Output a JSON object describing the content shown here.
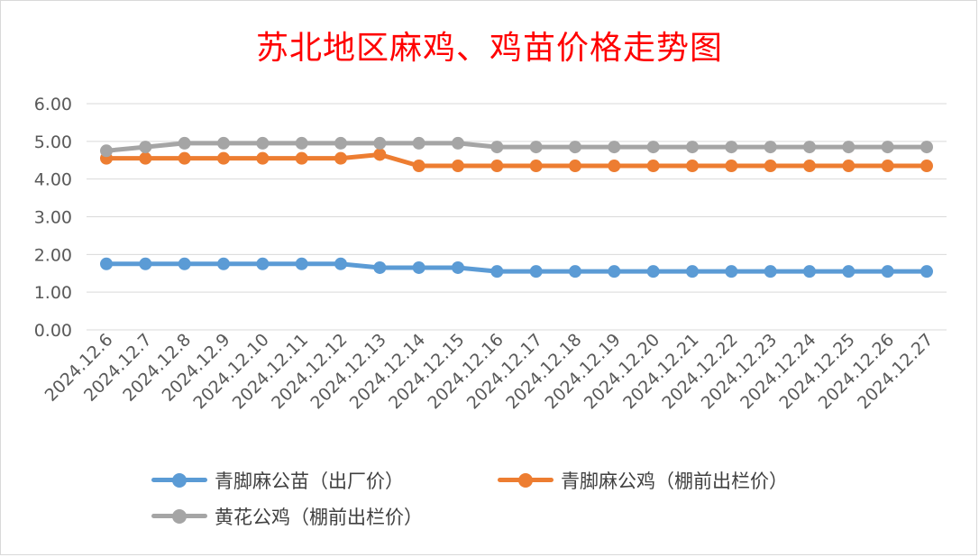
{
  "chart_data": {
    "type": "line",
    "title": "苏北地区麻鸡、鸡苗价格走势图",
    "xlabel": "",
    "ylabel": "",
    "ylim": [
      0,
      6
    ],
    "yticks": [
      "0.00",
      "1.00",
      "2.00",
      "3.00",
      "4.00",
      "5.00",
      "6.00"
    ],
    "grid": true,
    "legend_position": "bottom",
    "categories": [
      "2024.12.6",
      "2024.12.7",
      "2024.12.8",
      "2024.12.9",
      "2024.12.10",
      "2024.12.11",
      "2024.12.12",
      "2024.12.13",
      "2024.12.14",
      "2024.12.15",
      "2024.12.16",
      "2024.12.17",
      "2024.12.18",
      "2024.12.19",
      "2024.12.20",
      "2024.12.21",
      "2024.12.22",
      "2024.12.23",
      "2024.12.24",
      "2024.12.25",
      "2024.12.26",
      "2024.12.27"
    ],
    "series": [
      {
        "name": "青脚麻公苗（出厂价）",
        "color": "#5b9bd5",
        "values": [
          1.75,
          1.75,
          1.75,
          1.75,
          1.75,
          1.75,
          1.75,
          1.65,
          1.65,
          1.65,
          1.55,
          1.55,
          1.55,
          1.55,
          1.55,
          1.55,
          1.55,
          1.55,
          1.55,
          1.55,
          1.55,
          1.55
        ]
      },
      {
        "name": "青脚麻公鸡（棚前出栏价）",
        "color": "#ed7d31",
        "values": [
          4.55,
          4.55,
          4.55,
          4.55,
          4.55,
          4.55,
          4.55,
          4.65,
          4.35,
          4.35,
          4.35,
          4.35,
          4.35,
          4.35,
          4.35,
          4.35,
          4.35,
          4.35,
          4.35,
          4.35,
          4.35,
          4.35
        ]
      },
      {
        "name": "黄花公鸡（棚前出栏价）",
        "color": "#a5a5a5",
        "values": [
          4.75,
          4.85,
          4.95,
          4.95,
          4.95,
          4.95,
          4.95,
          4.95,
          4.95,
          4.95,
          4.85,
          4.85,
          4.85,
          4.85,
          4.85,
          4.85,
          4.85,
          4.85,
          4.85,
          4.85,
          4.85,
          4.85
        ]
      }
    ]
  }
}
